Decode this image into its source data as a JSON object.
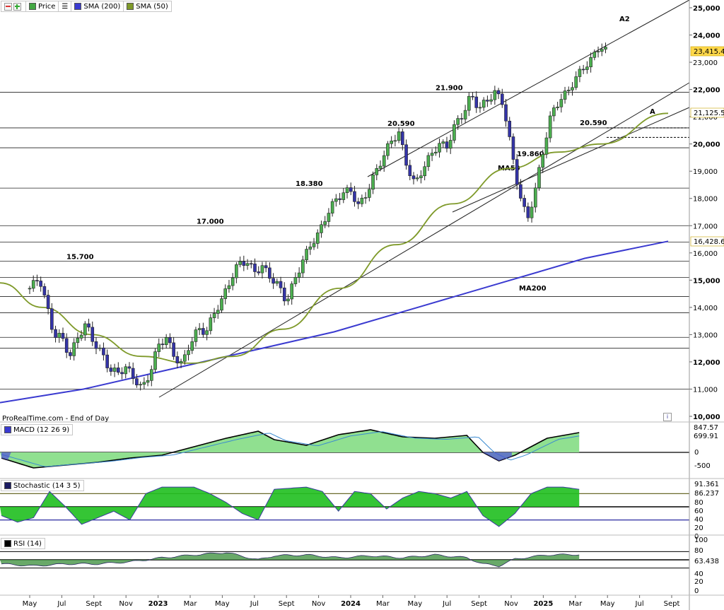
{
  "legend": {
    "price_label": "Price",
    "sma200_label": "SMA (200)",
    "sma50_label": "SMA (50)",
    "macd_label": "MACD (12 26 9)",
    "stoch_label": "Stochastic (14 3 5)",
    "rsi_label": "RSI (14)"
  },
  "source_note": "ProRealTime.com - End of Day",
  "info_glyph": "i",
  "colors": {
    "up_candle": "#4caf50",
    "down_candle": "#3434a8",
    "sma200": "#3a3ad0",
    "sma50": "#7f9a2a",
    "macd_fill": "#90e090",
    "stoch_fill": "#1fbf1f",
    "rsi_fill": "#4f9a4f"
  },
  "chart_data": [
    {
      "type": "candlestick",
      "ylim": [
        10000,
        25000
      ],
      "y_ticks": [
        "25,000",
        "24,000",
        "23,000",
        "22,000",
        "21,000",
        "20,000",
        "19,000",
        "18,000",
        "17,000",
        "16,000",
        "15,000",
        "14,000",
        "13,000",
        "12,000",
        "11,000",
        "10,000"
      ],
      "x_ticks": [
        "May",
        "Jul",
        "Sept",
        "Nov",
        "2023",
        "Mar",
        "May",
        "Jul",
        "Sept",
        "Nov",
        "2024",
        "Mar",
        "May",
        "Jul",
        "Sept",
        "Nov",
        "2025",
        "Mar",
        "May",
        "Jul",
        "Sept"
      ],
      "last_price": "23,415.42",
      "sma50_value": "21,125.55",
      "sma200_value": "16,428.64",
      "levels": [
        {
          "label": "21.900",
          "value": 21900
        },
        {
          "label": "20.590",
          "value": 20590
        },
        {
          "label": "19.860",
          "value": 19860
        },
        {
          "label": "18.380",
          "value": 18380
        },
        {
          "label": "17.000",
          "value": 17000
        },
        {
          "label": "15.700",
          "value": 15700
        },
        {
          "label": "20.590",
          "value": 20590
        }
      ],
      "annotations": [
        "A2",
        "A",
        "MA50",
        "MA200"
      ],
      "series": [
        {
          "name": "SMA (200)",
          "values": [
            10500,
            11000,
            11700,
            12400,
            13100,
            14000,
            14900,
            15800,
            16428
          ]
        },
        {
          "name": "SMA (50)",
          "values": [
            14900,
            14000,
            13000,
            12200,
            11950,
            12200,
            13200,
            14700,
            16300,
            17800,
            19100,
            19700,
            20000,
            21125
          ]
        }
      ]
    },
    {
      "type": "area",
      "title": "MACD (12 26 9)",
      "values_label": [
        "847.57",
        "699.91"
      ],
      "y_ticks": [
        "0",
        "-500"
      ]
    },
    {
      "type": "area",
      "title": "Stochastic (14 3 5)",
      "values_label": [
        "91.361",
        "86.237"
      ],
      "y_ticks": [
        "80",
        "60",
        "40",
        "20",
        "0"
      ]
    },
    {
      "type": "area",
      "title": "RSI (14)",
      "values_label": [
        "63.438"
      ],
      "y_ticks": [
        "100",
        "80",
        "40",
        "20",
        "0"
      ]
    }
  ]
}
